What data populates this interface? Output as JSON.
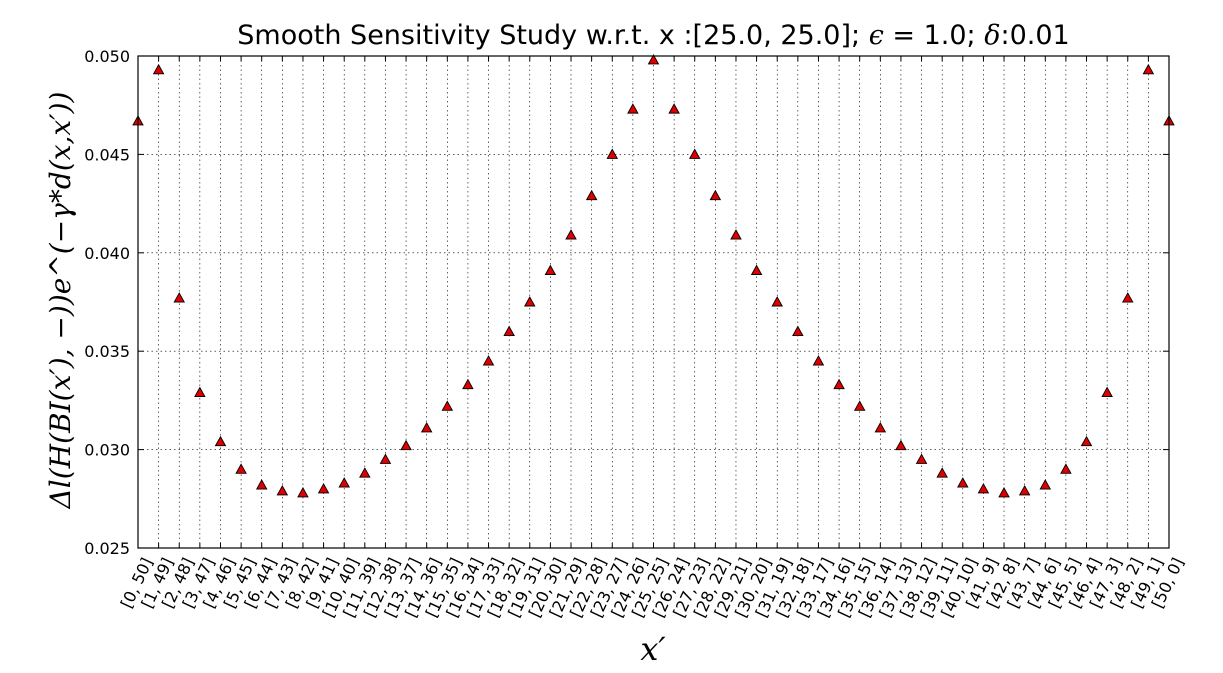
{
  "chart_data": {
    "type": "scatter",
    "title": {
      "prefix": "Smooth Sensitivity Study w.r.t. x :[25.0, 25.0]; ",
      "epsilon_symbol": "ϵ",
      "epsilon_part": " = 1.0; ",
      "delta_symbol": "δ",
      "delta_part": ":0.01"
    },
    "xlabel": "x′",
    "ylabel": "Δl(H(BI(x′), −))e^(−γ*d(x,x′))",
    "ylim": [
      0.025,
      0.05
    ],
    "yticks": [
      "0.025",
      "0.030",
      "0.035",
      "0.040",
      "0.045",
      "0.050"
    ],
    "grid": true,
    "marker": {
      "shape": "triangle-up",
      "color": "#dd0000",
      "edge": "#000000"
    },
    "categories": [
      "[0, 50]",
      "[1, 49]",
      "[2, 48]",
      "[3, 47]",
      "[4, 46]",
      "[5, 45]",
      "[6, 44]",
      "[7, 43]",
      "[8, 42]",
      "[9, 41]",
      "[10, 40]",
      "[11, 39]",
      "[12, 38]",
      "[13, 37]",
      "[14, 36]",
      "[15, 35]",
      "[16, 34]",
      "[17, 33]",
      "[18, 32]",
      "[19, 31]",
      "[20, 30]",
      "[21, 29]",
      "[22, 28]",
      "[23, 27]",
      "[24, 26]",
      "[25, 25]",
      "[26, 24]",
      "[27, 23]",
      "[28, 22]",
      "[29, 21]",
      "[30, 20]",
      "[31, 19]",
      "[32, 18]",
      "[33, 17]",
      "[34, 16]",
      "[35, 15]",
      "[36, 14]",
      "[37, 13]",
      "[38, 12]",
      "[39, 11]",
      "[40, 10]",
      "[41, 9]",
      "[42, 8]",
      "[43, 7]",
      "[44, 6]",
      "[45, 5]",
      "[46, 4]",
      "[47, 3]",
      "[48, 2]",
      "[49, 1]",
      "[50, 0]"
    ],
    "values": [
      0.0467,
      0.0493,
      0.0377,
      0.0329,
      0.0304,
      0.029,
      0.0282,
      0.0279,
      0.0278,
      0.028,
      0.0283,
      0.0288,
      0.0295,
      0.0302,
      0.0311,
      0.0322,
      0.0333,
      0.0345,
      0.036,
      0.0375,
      0.0391,
      0.0409,
      0.0429,
      0.045,
      0.0473,
      0.0498,
      0.0473,
      0.045,
      0.0429,
      0.0409,
      0.0391,
      0.0375,
      0.036,
      0.0345,
      0.0333,
      0.0322,
      0.0311,
      0.0302,
      0.0295,
      0.0288,
      0.0283,
      0.028,
      0.0278,
      0.0279,
      0.0282,
      0.029,
      0.0304,
      0.0329,
      0.0377,
      0.0493,
      0.0467
    ]
  }
}
